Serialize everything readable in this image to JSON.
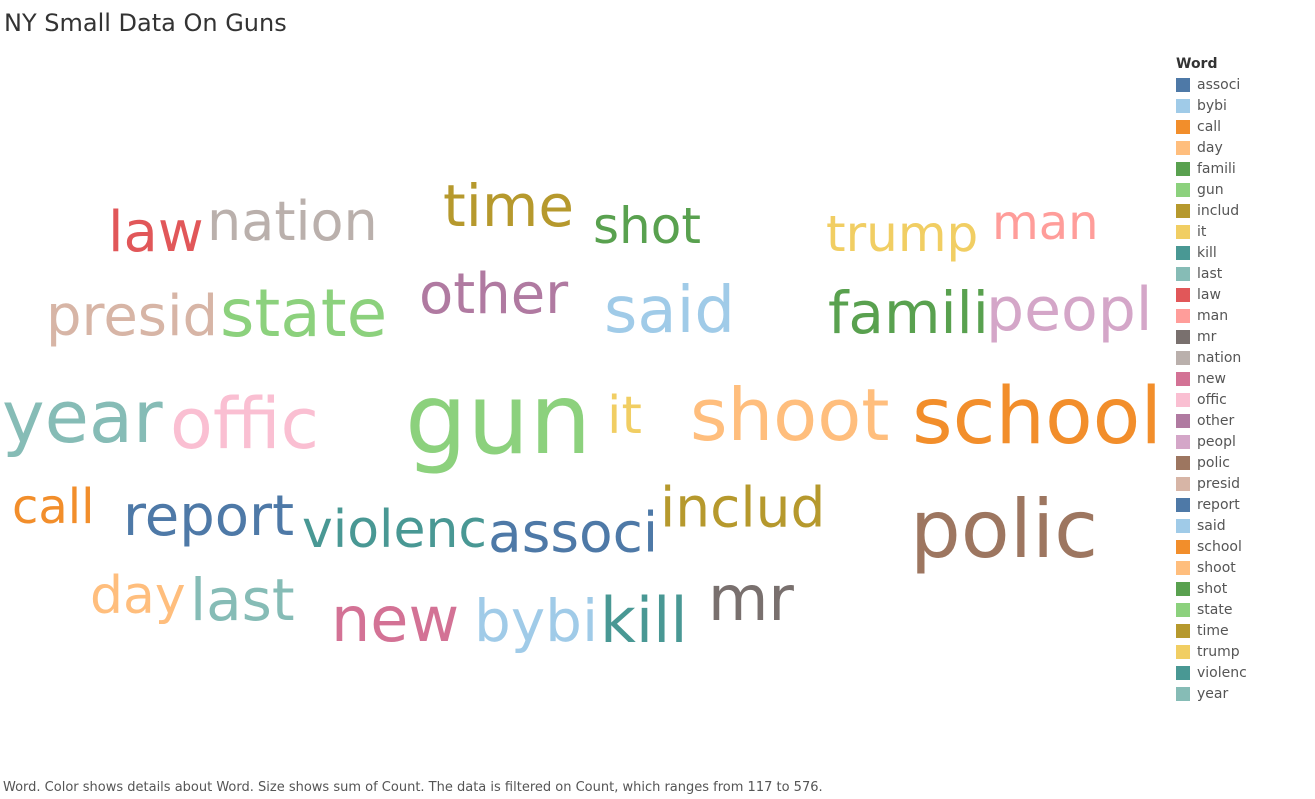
{
  "page": {
    "title": "NY Small Data On Guns",
    "footer": "Word.  Color shows details about Word.  Size shows sum of Count. The data is filtered on Count, which ranges from 117 to 576."
  },
  "legend": {
    "title": "Word"
  },
  "chart_data": {
    "type": "wordcloud",
    "color_field": "Word",
    "size_field": "Count",
    "count_range": [
      117,
      576
    ],
    "words": [
      {
        "text": "associ",
        "color": "#4e79a7",
        "count": 200
      },
      {
        "text": "bybi",
        "color": "#a0cbe8",
        "count": 180
      },
      {
        "text": "call",
        "color": "#f28e2b",
        "count": 135
      },
      {
        "text": "day",
        "color": "#ffbe7d",
        "count": 145
      },
      {
        "text": "famili",
        "color": "#59a14f",
        "count": 200
      },
      {
        "text": "gun",
        "color": "#8cd17d",
        "count": 576
      },
      {
        "text": "includ",
        "color": "#b6992d",
        "count": 165
      },
      {
        "text": "it",
        "color": "#f1ce63",
        "count": 120
      },
      {
        "text": "kill",
        "color": "#499894",
        "count": 185
      },
      {
        "text": "last",
        "color": "#86bcb6",
        "count": 170
      },
      {
        "text": "law",
        "color": "#e15759",
        "count": 170
      },
      {
        "text": "man",
        "color": "#ff9d9a",
        "count": 140
      },
      {
        "text": "mr",
        "color": "#79706e",
        "count": 195
      },
      {
        "text": "nation",
        "color": "#bab0ac",
        "count": 165
      },
      {
        "text": "new",
        "color": "#d37295",
        "count": 200
      },
      {
        "text": "offic",
        "color": "#fabfd2",
        "count": 250
      },
      {
        "text": "other",
        "color": "#b07aa1",
        "count": 180
      },
      {
        "text": "peopl",
        "color": "#d4a6c8",
        "count": 200
      },
      {
        "text": "polic",
        "color": "#9d7660",
        "count": 300
      },
      {
        "text": "presid",
        "color": "#d7b5a6",
        "count": 190
      },
      {
        "text": "report",
        "color": "#4e79a7",
        "count": 180
      },
      {
        "text": "said",
        "color": "#a0cbe8",
        "count": 200
      },
      {
        "text": "school",
        "color": "#f28e2b",
        "count": 300
      },
      {
        "text": "shoot",
        "color": "#ffbe7d",
        "count": 250
      },
      {
        "text": "shot",
        "color": "#59a14f",
        "count": 150
      },
      {
        "text": "state",
        "color": "#8cd17d",
        "count": 220
      },
      {
        "text": "time",
        "color": "#b6992d",
        "count": 190
      },
      {
        "text": "trump",
        "color": "#f1ce63",
        "count": 165
      },
      {
        "text": "violenc",
        "color": "#499894",
        "count": 165
      },
      {
        "text": "year",
        "color": "#86bcb6",
        "count": 250
      }
    ]
  }
}
